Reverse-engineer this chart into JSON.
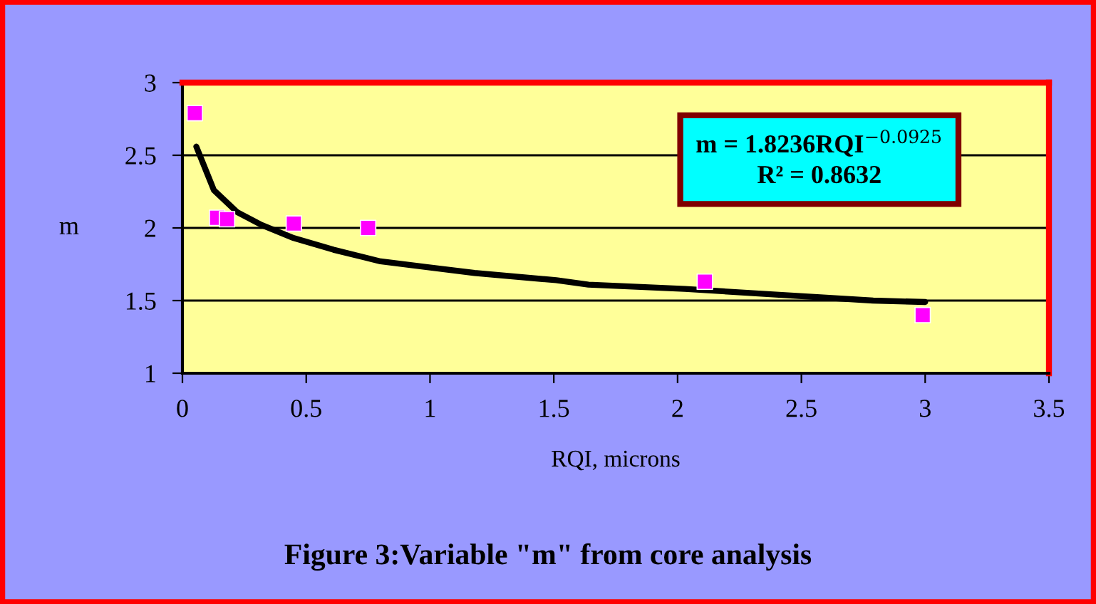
{
  "chart_data": {
    "type": "scatter",
    "title": "Figure 3:Variable \"m\" from core analysis",
    "xlabel": "RQI, microns",
    "ylabel": "m",
    "annotations": [
      "m = 1.8236RQI$^{−0.0925}$\nR² = 0.8632"
    ],
    "series": [
      {
        "color": "#ff00ff",
        "marker": "square",
        "x": [
          0.05,
          0.14,
          0.18,
          0.45,
          0.75,
          2.11,
          2.99
        ],
        "values": [
          2.79,
          2.07,
          2.06,
          2.03,
          2.0,
          1.63,
          1.4
        ]
      },
      {
        "type": "line",
        "color": "#000000",
        "marker": "none",
        "line_style": "solid",
        "x": [
          0.056,
          0.127,
          0.22,
          0.32,
          0.45,
          0.61,
          0.8,
          0.99,
          1.18,
          1.51,
          1.64,
          2.03,
          2.41,
          2.79,
          3.0
        ],
        "values": [
          2.56,
          2.26,
          2.11,
          2.02,
          1.93,
          1.85,
          1.77,
          1.73,
          1.69,
          1.64,
          1.61,
          1.58,
          1.54,
          1.5,
          1.49
        ]
      }
    ],
    "xlim": [
      0,
      3.5
    ],
    "xticks": [
      0,
      0.5,
      1,
      1.5,
      2,
      2.5,
      3,
      3.5
    ],
    "ylim": [
      1,
      3
    ],
    "yticks": [
      1,
      1.5,
      2,
      2.5,
      3
    ],
    "grid": "y",
    "legend": false
  }
}
